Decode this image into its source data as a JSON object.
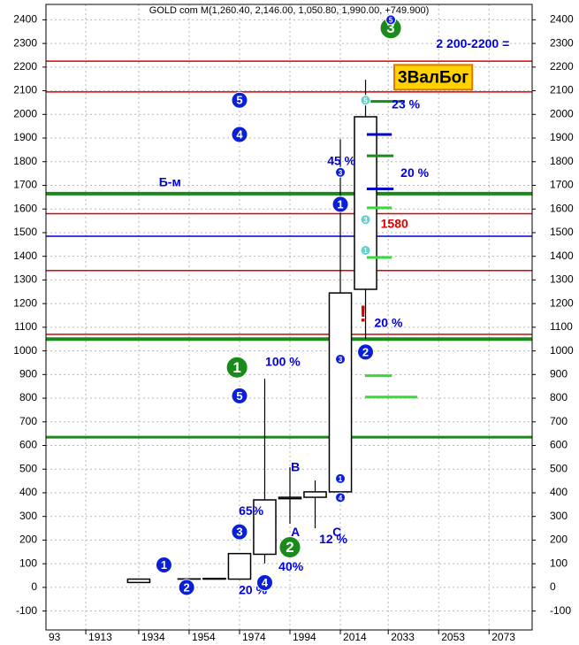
{
  "chart_data": {
    "type": "candlestick",
    "title": "GOLD com M(1,260.40, 2,146.00, 1,050.80, 1,990.00, +749.900)",
    "x": [
      1903,
      1913,
      1923,
      1934,
      1944,
      1954,
      1964,
      1974,
      1984,
      1994,
      2004,
      2014,
      2024
    ],
    "open": [
      20.7,
      20.7,
      20.7,
      20.7,
      35,
      35,
      35,
      35,
      140,
      375,
      381,
      404,
      1260.4
    ],
    "high": [
      20.7,
      20.7,
      20.7,
      35,
      35,
      37,
      40,
      143,
      882,
      508,
      452,
      1895,
      2146
    ],
    "low": [
      20.7,
      20.7,
      20.7,
      20.7,
      35,
      35,
      35,
      35,
      101,
      269,
      250,
      359,
      1050.8
    ],
    "close": [
      20.7,
      20.7,
      20.7,
      35,
      35,
      36,
      38,
      143,
      370,
      381,
      404,
      1245,
      1990
    ],
    "color": "#000000",
    "xlim": [
      1897.2,
      2090.1
    ],
    "xticks": [
      {
        "value": 1893,
        "label": "93"
      },
      1913,
      1934,
      1954,
      1974,
      1994,
      2014,
      2033,
      2053,
      2073
    ],
    "ylim": [
      -180,
      2465
    ],
    "yticks": [
      -100,
      0,
      100,
      200,
      300,
      400,
      500,
      600,
      700,
      800,
      900,
      1000,
      1100,
      1200,
      1300,
      1400,
      1500,
      1600,
      1700,
      1800,
      1900,
      2000,
      2100,
      2200,
      2300,
      2400
    ],
    "grid": true,
    "levels": [
      {
        "value": 2225,
        "color": "#e00000"
      },
      {
        "value": 2095,
        "color": "#e00000"
      },
      {
        "value": 1665,
        "color": "#1a8a1a",
        "width": 4
      },
      {
        "value": 1580,
        "color": "#e00000"
      },
      {
        "value": 1485,
        "color": "#0000cc"
      },
      {
        "value": 1340,
        "color": "#e00000"
      },
      {
        "value": 1070,
        "color": "#e00000"
      },
      {
        "value": 1050,
        "color": "#1a8a1a",
        "width": 4
      },
      {
        "value": 635,
        "color": "#1a8a1a",
        "width": 3
      }
    ],
    "segments": [
      {
        "value": 2055,
        "x": [
          2025.6,
          2039.6
        ],
        "color": "#1a8a1a"
      },
      {
        "value": 1915,
        "x": [
          2024.5,
          2034.4
        ],
        "color": "#0000cc"
      },
      {
        "value": 1825,
        "x": [
          2024.5,
          2035.1
        ],
        "color": "#1a8a1a"
      },
      {
        "value": 1685,
        "x": [
          2024.5,
          2035.1
        ],
        "color": "#0000cc"
      },
      {
        "value": 1605,
        "x": [
          2024.5,
          2034.4
        ],
        "color": "#33dd33"
      },
      {
        "value": 1395,
        "x": [
          2024.5,
          2034.4
        ],
        "color": "#33dd33"
      },
      {
        "value": 895,
        "x": [
          2023.8,
          2034.4
        ],
        "color": "#33dd33"
      },
      {
        "value": 805,
        "x": [
          2023.8,
          2044.5
        ],
        "color": "#33dd33"
      }
    ],
    "circles": [
      {
        "text": "5",
        "x": 1974,
        "y": 2060,
        "color": "#0a1fd8",
        "kind": "large"
      },
      {
        "text": "4",
        "x": 1974,
        "y": 1915,
        "color": "#0a1fd8",
        "kind": "large"
      },
      {
        "text": "5",
        "x": 1974,
        "y": 810,
        "color": "#0a1fd8",
        "kind": "large"
      },
      {
        "text": "3",
        "x": 1974,
        "y": 235,
        "color": "#0a1fd8",
        "kind": "large"
      },
      {
        "text": "1",
        "x": 1944,
        "y": 95,
        "color": "#0a1fd8",
        "kind": "large"
      },
      {
        "text": "2",
        "x": 1953,
        "y": 0,
        "color": "#0a1fd8",
        "kind": "large"
      },
      {
        "text": "4",
        "x": 1984,
        "y": 20,
        "color": "#0a1fd8",
        "kind": "large"
      },
      {
        "text": "2",
        "x": 2024,
        "y": 995,
        "color": "#0a1fd8",
        "kind": "large"
      },
      {
        "text": "1",
        "x": 2014,
        "y": 1620,
        "color": "#0a1fd8",
        "kind": "large"
      },
      {
        "text": "1",
        "x": 1973,
        "y": 930,
        "color": "#1a8a1a",
        "kind": "huge"
      },
      {
        "text": "2",
        "x": 1994,
        "y": 170,
        "color": "#1a8a1a",
        "kind": "huge"
      },
      {
        "text": "3",
        "x": 2034,
        "y": 2365,
        "color": "#1a8a1a",
        "kind": "huge"
      },
      {
        "text": "5",
        "x": 2034,
        "y": 2400,
        "color": "#0a1fd8",
        "kind": "small"
      },
      {
        "text": "3",
        "x": 2014,
        "y": 1755,
        "color": "#0a1fd8",
        "kind": "small"
      },
      {
        "text": "3",
        "x": 2014,
        "y": 965,
        "color": "#0a1fd8",
        "kind": "small"
      },
      {
        "text": "1",
        "x": 2014,
        "y": 460,
        "color": "#0a1fd8",
        "kind": "small"
      },
      {
        "text": "4",
        "x": 2014,
        "y": 380,
        "color": "#0a1fd8",
        "kind": "small"
      },
      {
        "text": "5",
        "x": 2024,
        "y": 2060,
        "color": "#5fd0d0",
        "kind": "small"
      },
      {
        "text": "3",
        "x": 2024,
        "y": 1555,
        "color": "#5fd0d0",
        "kind": "small"
      },
      {
        "text": "1",
        "x": 2024,
        "y": 1425,
        "color": "#5fd0d0",
        "kind": "small"
      }
    ],
    "annotations": [
      {
        "text": "2 200-2200 =",
        "x": 2052,
        "y": 2295,
        "color": "#0000dd"
      },
      {
        "text": "23 %",
        "x": 2034.4,
        "y": 2040,
        "color": "#0000dd"
      },
      {
        "text": "45 %",
        "x": 2008.8,
        "y": 1800,
        "color": "#0000dd"
      },
      {
        "text": "20 %",
        "x": 2037.9,
        "y": 1750,
        "color": "#0000dd"
      },
      {
        "text": "Б-м",
        "x": 1942,
        "y": 1710,
        "color": "#0000dd"
      },
      {
        "text": "1580",
        "x": 2030,
        "y": 1535,
        "color": "#e00000"
      },
      {
        "text": "!",
        "x": 2021.5,
        "y": 1150,
        "color": "#e00000"
      },
      {
        "text": "20 %",
        "x": 2027.5,
        "y": 1115,
        "color": "#0000dd"
      },
      {
        "text": "100 %",
        "x": 1984.2,
        "y": 950,
        "color": "#0000dd"
      },
      {
        "text": "B",
        "x": 1994.4,
        "y": 505,
        "color": "#0000dd"
      },
      {
        "text": "65%",
        "x": 1973.7,
        "y": 320,
        "color": "#0000dd"
      },
      {
        "text": "A",
        "x": 1994.4,
        "y": 230,
        "color": "#0000dd"
      },
      {
        "text": "C",
        "x": 2010.9,
        "y": 230,
        "color": "#0000dd"
      },
      {
        "text": "12 %",
        "x": 2005.6,
        "y": 200,
        "color": "#0000dd"
      },
      {
        "text": "40%",
        "x": 1989.5,
        "y": 85,
        "color": "#0000dd"
      },
      {
        "text": "20 %",
        "x": 1973.7,
        "y": -15,
        "color": "#0000dd"
      }
    ],
    "badge": {
      "text": "3ВалБог",
      "x": 2035.4,
      "y": 2157
    }
  }
}
